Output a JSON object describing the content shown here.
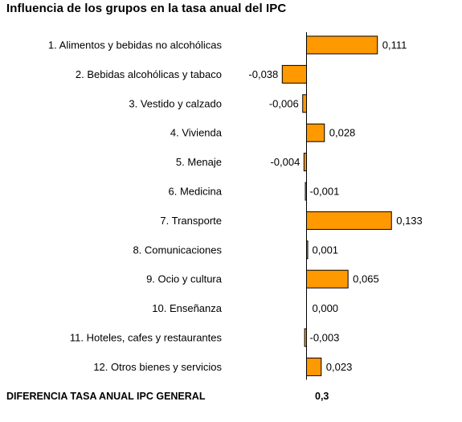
{
  "title": "Influencia de los grupos en la tasa anual del IPC",
  "colors": {
    "bar": "#ff9900",
    "bar_stroke": "#000000",
    "axis": "#000000"
  },
  "chart_data": {
    "type": "bar",
    "orientation": "horizontal",
    "categories": [
      "1. Alimentos y bebidas no alcohólicas",
      "2. Bebidas alcohólicas y tabaco",
      "3. Vestido y calzado",
      "4. Vivienda",
      "5. Menaje",
      "6. Medicina",
      "7. Transporte",
      "8. Comunicaciones",
      "9. Ocio y cultura",
      "10. Enseñanza",
      "11. Hoteles, cafes y restaurantes",
      "12. Otros bienes y servicios"
    ],
    "values": [
      0.111,
      -0.038,
      -0.006,
      0.028,
      -0.004,
      -0.001,
      0.133,
      0.001,
      0.065,
      0.0,
      -0.003,
      0.023
    ],
    "value_labels": [
      "0,111",
      "-0,038",
      "-0,006",
      "0,028",
      "-0,004",
      "-0,001",
      "0,133",
      "0,001",
      "0,065",
      "0,000",
      "-0,003",
      "0,023"
    ],
    "xlim": [
      -0.045,
      0.14
    ],
    "grid": false,
    "legend": "none"
  },
  "footer": {
    "label": "DIFERENCIA TASA ANUAL IPC GENERAL",
    "value": "0,3"
  }
}
